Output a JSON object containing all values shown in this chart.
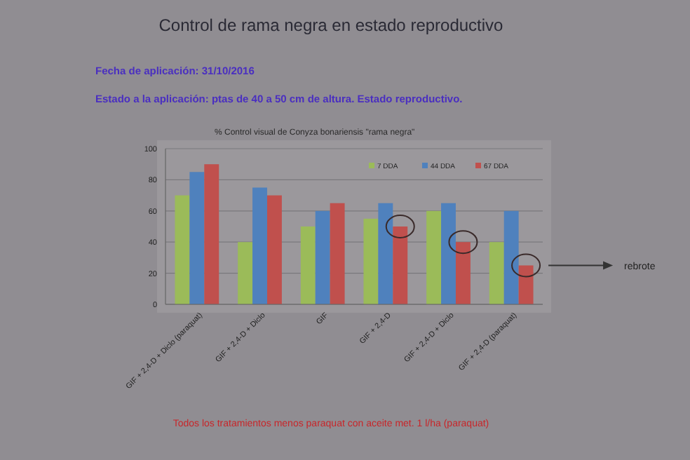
{
  "chart_data": {
    "type": "bar",
    "title": "Control de rama negra en estado reproductivo",
    "subtitle": "% Control visual de Conyza bonariensis  \"rama negra\"",
    "categories": [
      "GIF + 2,4-D + Diclo (paraquat)",
      "GIF + 2,4-D + Diclo",
      "GIF",
      "GIF + 2,4-D",
      "GIF + 2,4-D + Diclo",
      "GIF + 2,4-D (paraquat)"
    ],
    "series": [
      {
        "name": "7 DDA",
        "color": "#9bbb59",
        "values": [
          70,
          40,
          50,
          55,
          60,
          40
        ]
      },
      {
        "name": "44 DDA",
        "color": "#4f81bd",
        "values": [
          85,
          75,
          60,
          65,
          65,
          60
        ]
      },
      {
        "name": "67 DDA",
        "color": "#c0504d",
        "values": [
          90,
          70,
          65,
          50,
          40,
          25
        ]
      }
    ],
    "ylim": [
      0,
      100
    ],
    "yticks": [
      0,
      20,
      40,
      60,
      80,
      100
    ],
    "grid": "y",
    "legend": "top right",
    "annotations": [
      "Fecha de aplicación: 31/10/2016",
      "Estado a la aplicación: ptas de 40 a 50 cm de altura. Estado reproductivo.",
      "Todos los tratamientos menos paraquat con aceite met. 1 l/ha (paraquat)",
      "rebrote"
    ]
  }
}
